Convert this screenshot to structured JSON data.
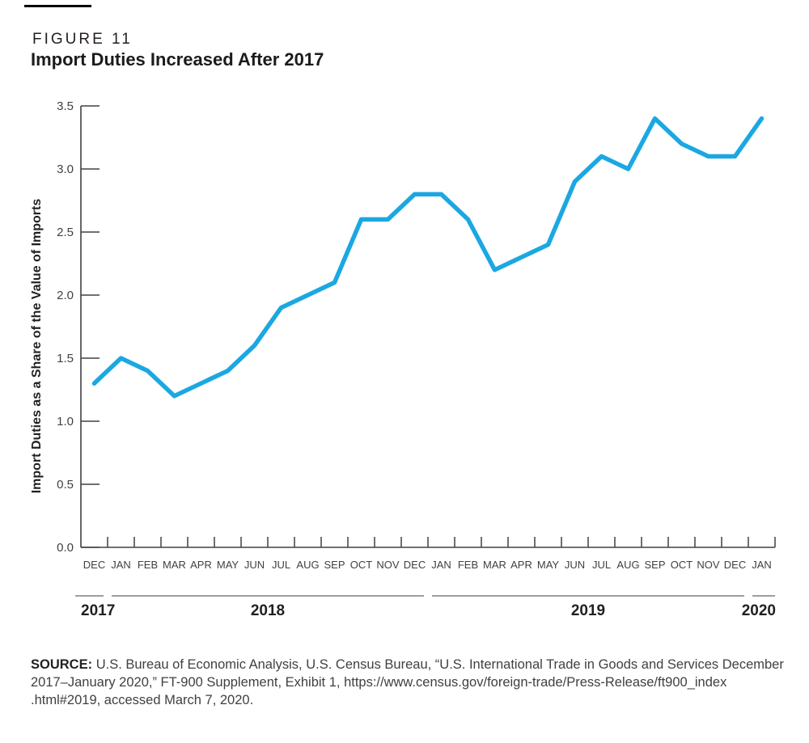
{
  "figure": {
    "label": "FIGURE 11",
    "title": "Import Duties Increased After 2017"
  },
  "chart_data": {
    "type": "line",
    "title": "Import Duties Increased After 2017",
    "xlabel": "",
    "ylabel": "Import Duties as a Share of the Value of Imports",
    "ylim": [
      0.0,
      3.5
    ],
    "ytick_step": 0.5,
    "yticks": [
      "0.0",
      "0.5",
      "1.0",
      "1.5",
      "2.0",
      "2.5",
      "3.0",
      "3.5"
    ],
    "categories": [
      "DEC",
      "JAN",
      "FEB",
      "MAR",
      "APR",
      "MAY",
      "JUN",
      "JUL",
      "AUG",
      "SEP",
      "OCT",
      "NOV",
      "DEC",
      "JAN",
      "FEB",
      "MAR",
      "APR",
      "MAY",
      "JUN",
      "JUL",
      "AUG",
      "SEP",
      "OCT",
      "NOV",
      "DEC",
      "JAN"
    ],
    "values": [
      1.3,
      1.5,
      1.4,
      1.2,
      1.3,
      1.4,
      1.6,
      1.9,
      2.0,
      2.1,
      2.6,
      2.6,
      2.8,
      2.8,
      2.6,
      2.2,
      2.3,
      2.4,
      2.9,
      3.1,
      3.0,
      3.4,
      3.2,
      3.1,
      3.1,
      3.4
    ],
    "x_year_groups": [
      {
        "label": "2017",
        "start": 0,
        "end": 0
      },
      {
        "label": "2018",
        "start": 1,
        "end": 12
      },
      {
        "label": "2019",
        "start": 13,
        "end": 24
      },
      {
        "label": "2020",
        "start": 25,
        "end": 25
      }
    ],
    "grid": false,
    "legend": "none",
    "line_color": "#1BA8E2",
    "axis_color": "#414042",
    "year_rule_color": "#7E7F82",
    "year_label_color": "#231F20"
  },
  "source": {
    "label": "SOURCE:",
    "lines": [
      "U.S. Bureau of Economic Analysis, U.S. Census Bureau, “U.S. International Trade in Goods and Services December",
      "2017–January 2020,” FT-900 Supplement, Exhibit 1, https://www.census.gov/foreign-trade/Press-Release/ft900_index",
      ".html#2019, accessed March 7, 2020."
    ]
  }
}
